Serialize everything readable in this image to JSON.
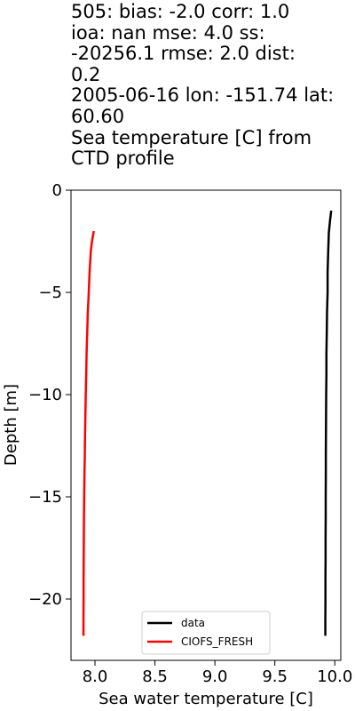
{
  "chart_data": {
    "type": "line",
    "title_lines": [
      "505: bias: -2.0  corr: 1.0",
      "ioa: nan  mse: 4.0  ss:",
      "-20256.1  rmse: 2.0  dist:",
      "0.2",
      "2005-06-16 lon: -151.74 lat:",
      "60.60",
      "Sea temperature [C] from",
      "CTD profile"
    ],
    "xlabel": "Sea water temperature [C]",
    "ylabel": "Depth [m]",
    "xlim": [
      7.8,
      10.05
    ],
    "ylim": [
      -23,
      0
    ],
    "x_ticks": [
      8.0,
      8.5,
      9.0,
      9.5,
      10.0
    ],
    "x_tick_labels": [
      "8.0",
      "8.5",
      "9.0",
      "9.5",
      "10.0"
    ],
    "y_ticks": [
      0,
      -5,
      -10,
      -15,
      -20
    ],
    "y_tick_labels": [
      "0",
      "−5",
      "−10",
      "−15",
      "−20"
    ],
    "legend_position": "lower center",
    "series": [
      {
        "name": "data",
        "color": "#000000",
        "points": [
          [
            9.97,
            -1.0
          ],
          [
            9.96,
            -1.5
          ],
          [
            9.95,
            -2.1
          ],
          [
            9.945,
            -3.0
          ],
          [
            9.94,
            -4.0
          ],
          [
            9.94,
            -5.0
          ],
          [
            9.935,
            -6.0
          ],
          [
            9.933,
            -7.0
          ],
          [
            9.93,
            -8.0
          ],
          [
            9.93,
            -9.0
          ],
          [
            9.928,
            -10.0
          ],
          [
            9.927,
            -11.0
          ],
          [
            9.926,
            -12.0
          ],
          [
            9.925,
            -13.0
          ],
          [
            9.925,
            -14.0
          ],
          [
            9.924,
            -15.0
          ],
          [
            9.924,
            -16.0
          ],
          [
            9.923,
            -17.0
          ],
          [
            9.923,
            -18.0
          ],
          [
            9.922,
            -19.0
          ],
          [
            9.922,
            -20.0
          ],
          [
            9.921,
            -21.0
          ],
          [
            9.921,
            -21.8
          ]
        ]
      },
      {
        "name": "CIOFS_FRESH",
        "color": "#ff0000",
        "points": [
          [
            7.99,
            -2.0
          ],
          [
            7.975,
            -2.5
          ],
          [
            7.965,
            -3.0
          ],
          [
            7.955,
            -4.0
          ],
          [
            7.948,
            -5.0
          ],
          [
            7.94,
            -6.0
          ],
          [
            7.935,
            -7.0
          ],
          [
            7.93,
            -8.0
          ],
          [
            7.927,
            -9.0
          ],
          [
            7.923,
            -10.0
          ],
          [
            7.92,
            -11.0
          ],
          [
            7.917,
            -12.0
          ],
          [
            7.915,
            -13.0
          ],
          [
            7.912,
            -14.0
          ],
          [
            7.91,
            -15.0
          ],
          [
            7.908,
            -16.0
          ],
          [
            7.907,
            -17.0
          ],
          [
            7.906,
            -18.0
          ],
          [
            7.905,
            -19.0
          ],
          [
            7.905,
            -20.0
          ],
          [
            7.904,
            -21.0
          ],
          [
            7.904,
            -21.8
          ]
        ]
      }
    ]
  }
}
